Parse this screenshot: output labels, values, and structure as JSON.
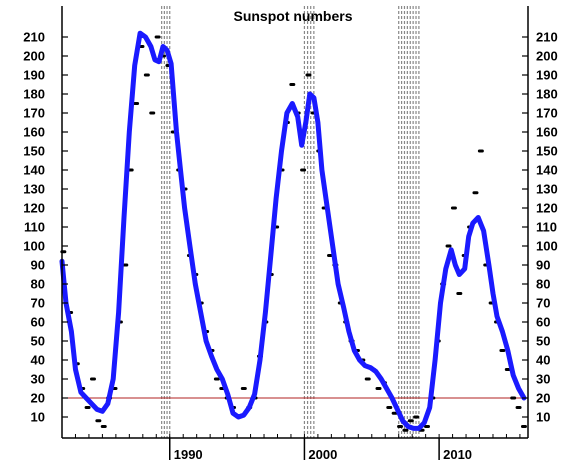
{
  "chart_data": {
    "type": "line",
    "title": "Sunspot numbers",
    "xlabel": "",
    "ylabel": "",
    "xlim": [
      1982.0,
      2016.6
    ],
    "ylim": [
      0,
      220
    ],
    "y_ticks": [
      10,
      20,
      30,
      40,
      50,
      60,
      70,
      80,
      90,
      100,
      110,
      120,
      130,
      140,
      150,
      160,
      170,
      180,
      190,
      200,
      210
    ],
    "x_ticks": [
      {
        "value": 1990,
        "label": "1990"
      },
      {
        "value": 2000,
        "label": "2000"
      },
      {
        "value": 2010,
        "label": "2010"
      }
    ],
    "grid": false,
    "reference_line": {
      "y": 20,
      "color": "#b22222"
    },
    "shaded_periods": [
      {
        "start": 1989.4,
        "end": 1990.0
      },
      {
        "start": 2000.0,
        "end": 2000.7
      },
      {
        "start": 2007.0,
        "end": 2008.5
      }
    ],
    "colors": {
      "smoothed": "#1a1aff",
      "monthly": "#000000",
      "reference": "#b22222",
      "period": "#888888"
    },
    "series": [
      {
        "name": "",
        "style": "line",
        "x": [
          1982.0,
          1982.3,
          1982.7,
          1983.0,
          1983.4,
          1983.8,
          1984.2,
          1984.6,
          1985.0,
          1985.4,
          1985.8,
          1986.2,
          1986.6,
          1987.0,
          1987.4,
          1987.8,
          1988.2,
          1988.6,
          1988.9,
          1989.2,
          1989.5,
          1989.8,
          1990.1,
          1990.5,
          1990.8,
          1991.1,
          1991.5,
          1991.9,
          1992.3,
          1992.7,
          1993.1,
          1993.5,
          1993.9,
          1994.3,
          1994.7,
          1995.1,
          1995.5,
          1995.9,
          1996.3,
          1996.7,
          1997.1,
          1997.5,
          1997.9,
          1998.3,
          1998.7,
          1999.1,
          1999.5,
          1999.8,
          2000.1,
          2000.4,
          2000.7,
          2001.0,
          2001.3,
          2001.7,
          2002.1,
          2002.5,
          2002.9,
          2003.3,
          2003.7,
          2004.1,
          2004.5,
          2004.9,
          2005.3,
          2005.7,
          2006.1,
          2006.5,
          2006.9,
          2007.3,
          2007.7,
          2008.1,
          2008.5,
          2008.9,
          2009.3,
          2009.7,
          2010.1,
          2010.5,
          2010.9,
          2011.2,
          2011.5,
          2011.9,
          2012.2,
          2012.5,
          2012.9,
          2013.3,
          2013.7,
          2014.0,
          2014.3,
          2014.7,
          2015.1,
          2015.5,
          2015.9,
          2016.3
        ],
        "values": [
          92,
          70,
          55,
          35,
          23,
          20,
          17,
          14,
          13,
          17,
          30,
          65,
          115,
          160,
          195,
          212,
          210,
          205,
          198,
          197,
          205,
          203,
          196,
          160,
          140,
          120,
          100,
          80,
          65,
          50,
          42,
          35,
          30,
          22,
          12,
          10,
          11,
          15,
          22,
          40,
          65,
          95,
          125,
          150,
          170,
          175,
          168,
          153,
          165,
          180,
          178,
          165,
          140,
          120,
          100,
          80,
          68,
          55,
          45,
          40,
          37,
          36,
          34,
          30,
          25,
          20,
          14,
          8,
          5,
          4,
          4,
          7,
          15,
          40,
          70,
          88,
          98,
          90,
          85,
          88,
          105,
          112,
          115,
          108,
          90,
          75,
          63,
          55,
          45,
          32,
          25,
          20
        ]
      },
      {
        "name": "",
        "style": "points",
        "x": [
          1982.1,
          1982.6,
          1983.1,
          1983.5,
          1983.9,
          1984.3,
          1984.7,
          1985.1,
          1985.5,
          1985.9,
          1986.3,
          1986.7,
          1987.1,
          1987.5,
          1987.9,
          1988.3,
          1988.7,
          1989.1,
          1989.5,
          1989.9,
          1990.3,
          1990.7,
          1991.1,
          1991.5,
          1991.9,
          1992.3,
          1992.7,
          1993.1,
          1993.5,
          1993.9,
          1994.3,
          1994.7,
          1995.1,
          1995.5,
          1995.9,
          1996.3,
          1996.7,
          1997.1,
          1997.5,
          1997.9,
          1998.3,
          1998.7,
          1999.1,
          1999.5,
          1999.9,
          2000.3,
          2000.7,
          2001.1,
          2001.5,
          2001.9,
          2002.3,
          2002.7,
          2003.1,
          2003.5,
          2003.9,
          2004.3,
          2004.7,
          2005.1,
          2005.5,
          2005.9,
          2006.3,
          2006.7,
          2007.1,
          2007.5,
          2007.9,
          2008.3,
          2008.7,
          2009.1,
          2009.5,
          2009.9,
          2010.3,
          2010.7,
          2011.1,
          2011.5,
          2011.9,
          2012.3,
          2012.7,
          2013.1,
          2013.5,
          2013.9,
          2014.3,
          2014.7,
          2015.1,
          2015.5,
          2015.9,
          2016.3
        ],
        "values": [
          97,
          65,
          38,
          25,
          15,
          30,
          8,
          5,
          20,
          25,
          60,
          90,
          140,
          175,
          205,
          190,
          170,
          210,
          200,
          195,
          160,
          140,
          130,
          95,
          85,
          70,
          55,
          45,
          30,
          25,
          20,
          15,
          10,
          25,
          15,
          20,
          42,
          60,
          85,
          110,
          140,
          165,
          185,
          170,
          140,
          190,
          170,
          150,
          120,
          95,
          90,
          70,
          60,
          50,
          45,
          40,
          30,
          35,
          25,
          28,
          15,
          12,
          5,
          3,
          8,
          10,
          3,
          5,
          20,
          50,
          80,
          100,
          120,
          75,
          95,
          110,
          128,
          150,
          90,
          70,
          60,
          45,
          35,
          20,
          15,
          5
        ]
      }
    ]
  }
}
